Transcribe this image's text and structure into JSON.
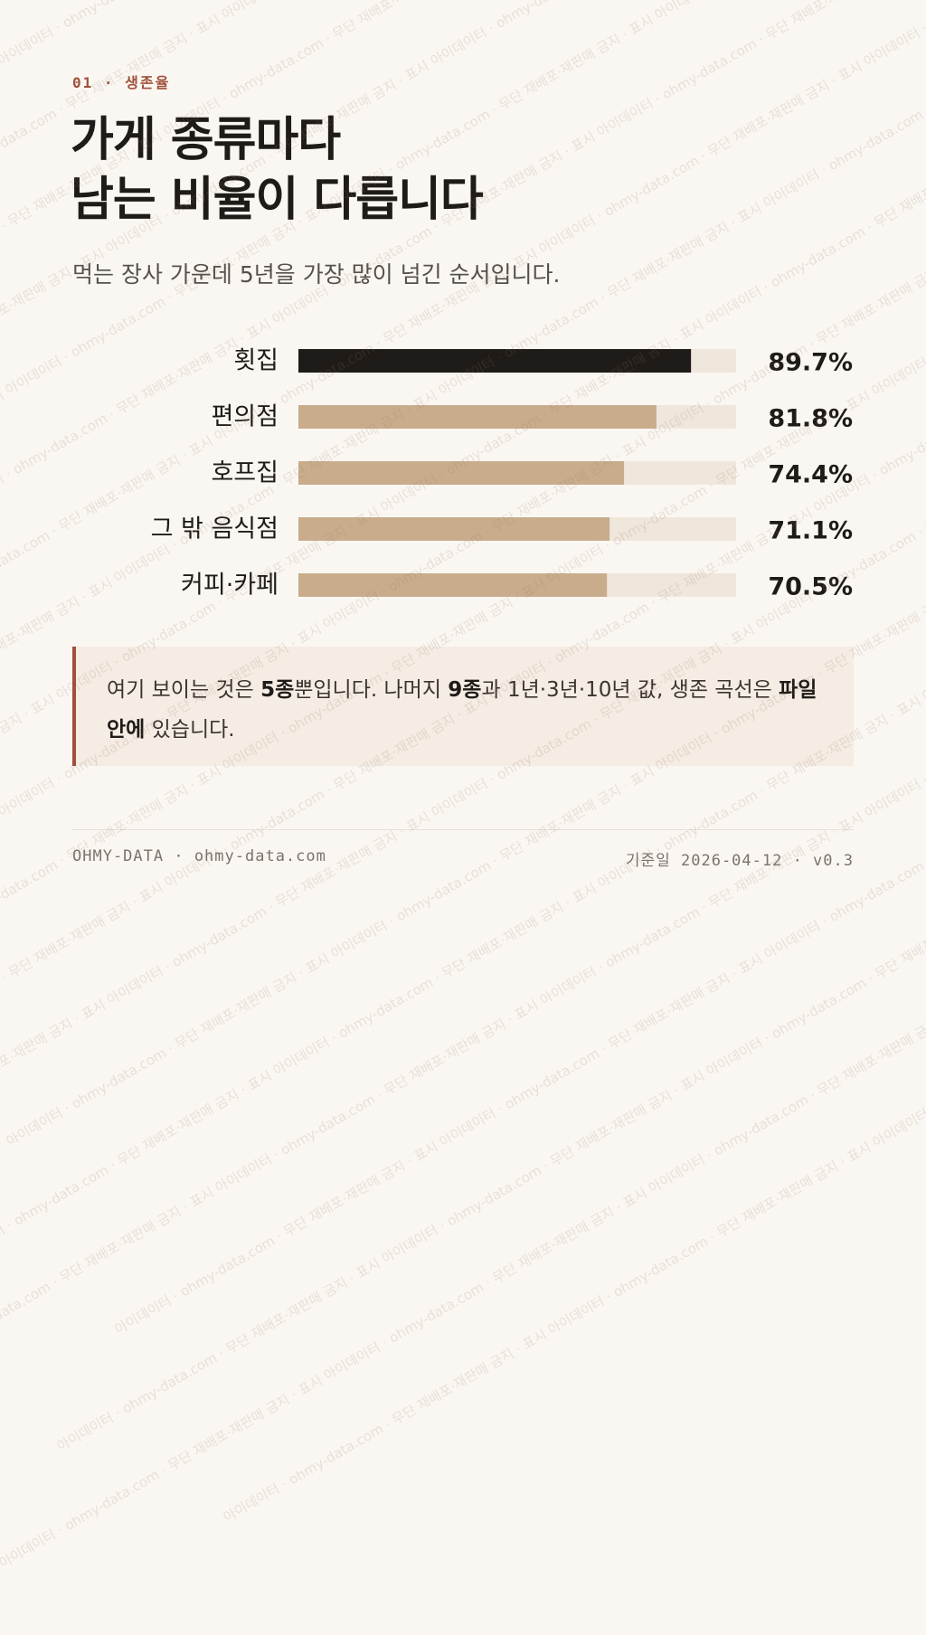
{
  "header": {
    "eyebrow": "01 · 생존율",
    "title_line1": "가게 종류마다",
    "title_line2": "남는 비율이 다릅니다",
    "subtitle": "먹는 장사 가운데 5년을 가장 많이 넘긴 순서입니다."
  },
  "chart_data": {
    "type": "bar",
    "orientation": "horizontal",
    "categories": [
      "횟집",
      "편의점",
      "호프집",
      "그 밖 음식점",
      "커피·카페"
    ],
    "values": [
      89.7,
      81.8,
      74.4,
      71.1,
      70.5
    ],
    "value_labels": [
      "89.7%",
      "81.8%",
      "74.4%",
      "71.1%",
      "70.5%"
    ],
    "unit": "%",
    "xlim": [
      0,
      100
    ],
    "highlight_index": 0,
    "colors": {
      "highlight": "#1f1b18",
      "bar": "#c9ac8c",
      "track": "#f0e7dc",
      "label": "#1f1b18"
    }
  },
  "note": {
    "p1": "여기 보이는 것은 ",
    "b1": "5종",
    "p2": "뿐입니다. 나머지 ",
    "b2": "9종",
    "p3": "과 1년·3년·10년 값, 생존 곡선은 ",
    "b3": "파일 안에",
    "p4": " 있습니다."
  },
  "footer": {
    "left": "OHMY-DATA · ohmy-data.com",
    "date_label": "기준일",
    "date_value": "2026-04-12 · v0.3"
  },
  "watermark": {
    "text": "아이데이터 · ohmy-data.com · 무단 재배포·재판매 금지 · 표시"
  },
  "colors": {
    "accent": "#a0503a",
    "background": "#faf7f2",
    "note_background": "#f5ece3"
  }
}
